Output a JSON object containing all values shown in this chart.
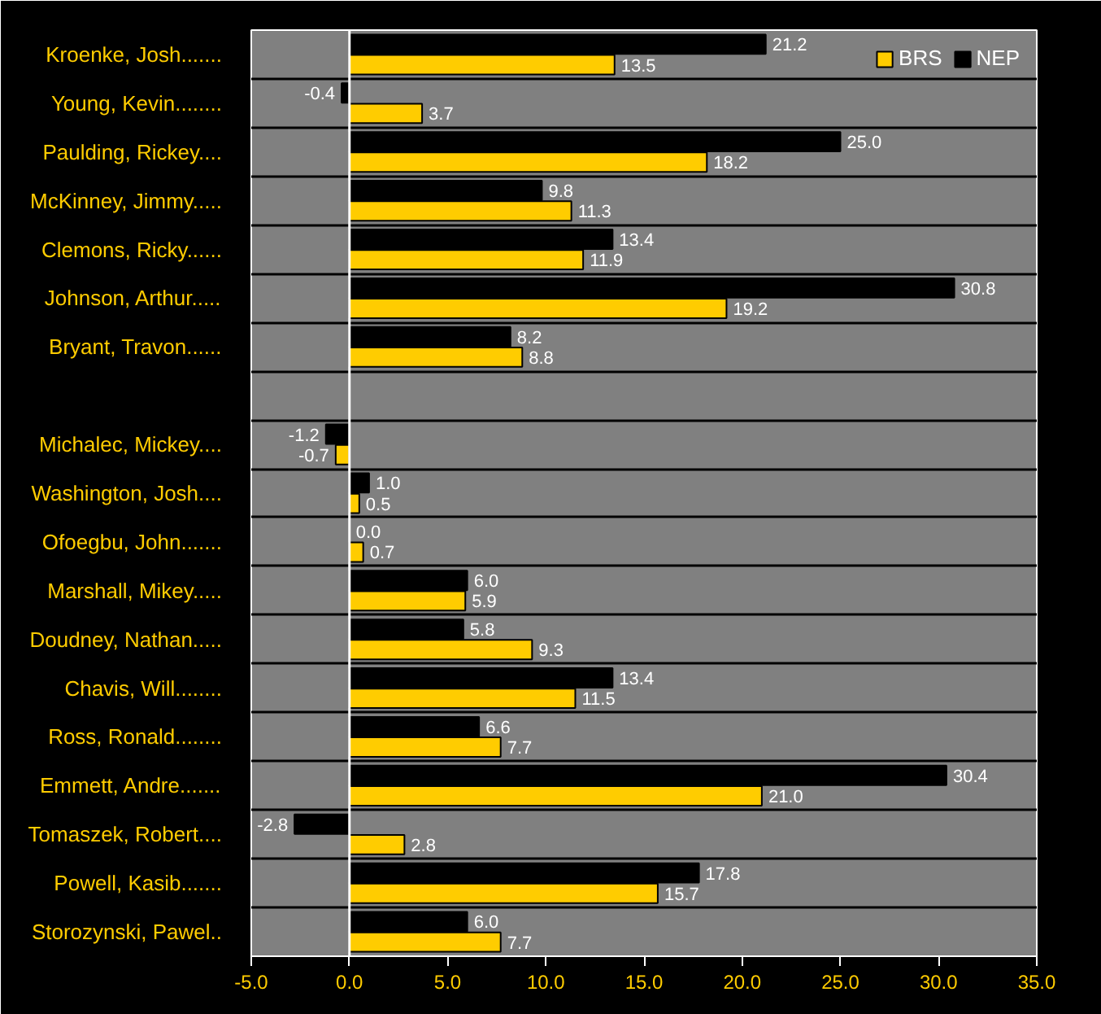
{
  "chart_data": {
    "type": "bar",
    "orientation": "horizontal",
    "categories": [
      "Kroenke, Josh.......",
      "Young, Kevin........",
      "Paulding, Rickey....",
      "McKinney, Jimmy.....",
      "Clemons, Ricky......",
      "Johnson, Arthur.....",
      "Bryant, Travon......",
      null,
      "Michalec, Mickey....",
      "Washington, Josh....",
      "Ofoegbu, John.......",
      "Marshall, Mikey.....",
      "Doudney, Nathan.....",
      "Chavis, Will........",
      "Ross, Ronald........",
      "Emmett, Andre.......",
      "Tomaszek, Robert....",
      "Powell, Kasib.......",
      "Storozynski, Pawel.."
    ],
    "series": [
      {
        "name": "BRS",
        "color": "#ffcc00",
        "values": [
          13.5,
          3.7,
          18.2,
          11.3,
          11.9,
          19.2,
          8.8,
          null,
          -0.7,
          0.5,
          0.7,
          5.9,
          9.3,
          11.5,
          7.7,
          21.0,
          2.8,
          15.7,
          7.7
        ],
        "value_labels": [
          "13.5",
          "3.7",
          "18.2",
          "11.3",
          "11.9",
          "19.2",
          "8.8",
          null,
          "-0.7",
          "0.5",
          "0.7",
          "5.9",
          "9.3",
          "11.5",
          "7.7",
          "21.0",
          "2.8",
          "15.7",
          "7.7"
        ]
      },
      {
        "name": "NEP",
        "color": "#000000",
        "values": [
          21.2,
          -0.4,
          25.0,
          9.8,
          13.4,
          30.8,
          8.2,
          null,
          -1.2,
          1.0,
          0.0,
          6.0,
          5.8,
          13.4,
          6.6,
          30.4,
          -2.8,
          17.8,
          6.0
        ],
        "value_labels": [
          "21.2",
          "-0.4",
          "25.0",
          "9.8",
          "13.4",
          "30.8",
          "8.2",
          null,
          "-1.2",
          "1.0",
          "0.0",
          "6.0",
          "5.8",
          "13.4",
          "6.6",
          "30.4",
          "-2.8",
          "17.8",
          "6.0"
        ]
      }
    ],
    "xlim": [
      -5,
      35
    ],
    "xticks": [
      {
        "value": -5,
        "label": "-5.0"
      },
      {
        "value": 0,
        "label": "0.0"
      },
      {
        "value": 5,
        "label": "5.0"
      },
      {
        "value": 10,
        "label": "10.0"
      },
      {
        "value": 15,
        "label": "15.0"
      },
      {
        "value": 20,
        "label": "20.0"
      },
      {
        "value": 25,
        "label": "25.0"
      },
      {
        "value": 30,
        "label": "30.0"
      },
      {
        "value": 35,
        "label": "35.0"
      }
    ],
    "ref_lines": [
      {
        "axis": "x",
        "value": 0,
        "color": "#ffffff"
      }
    ],
    "grid": "y",
    "legend": "top right"
  }
}
